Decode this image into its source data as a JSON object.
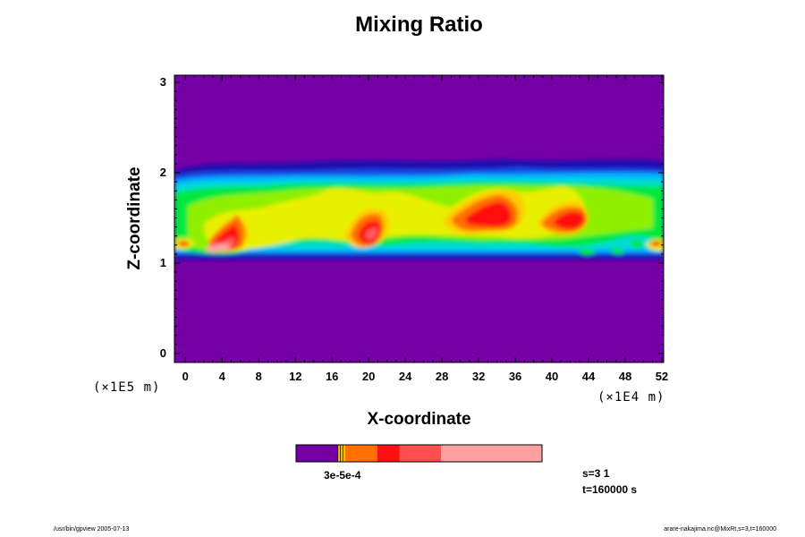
{
  "chart_data": {
    "type": "heatmap",
    "title": "Mixing Ratio",
    "xlabel": "X-coordinate",
    "ylabel": "Z-coordinate",
    "x_ticks": [
      "0",
      "4",
      "8",
      "12",
      "16",
      "20",
      "24",
      "28",
      "32",
      "36",
      "40",
      "44",
      "48",
      "52"
    ],
    "y_ticks": [
      "0",
      "1",
      "2",
      "3"
    ],
    "x_unit": "(×1E4 m)",
    "y_unit": "(×1E5 m)",
    "xlim": [
      -1.2,
      52.2
    ],
    "ylim": [
      -0.1,
      3.08
    ],
    "background_color": "#7400a6",
    "palette": [
      "#7400a6",
      "#1a10b0",
      "#1550e8",
      "#00b4ff",
      "#00dcd0",
      "#00e840",
      "#90f000",
      "#e8f000",
      "#ffcc00",
      "#ff7000",
      "#ff1010",
      "#ff5a5a",
      "#ffa0a0"
    ],
    "colorbar": {
      "colors": [
        "#7400a6",
        "#f4c000",
        "#ff7000",
        "#ff1010",
        "#ff5050",
        "#ffa0a0"
      ],
      "boundaries": [
        0.0,
        0.17,
        0.2,
        0.33,
        0.42,
        0.59,
        1.0
      ],
      "label": "3e-5e-4"
    },
    "info_lines": [
      "s=3 1",
      "t=160000 s"
    ]
  },
  "footer": {
    "left": "/usr/bin/gpview 2005-07-13",
    "right": "arare-nakajima.nc@MixRt,s=3,t=160000"
  }
}
